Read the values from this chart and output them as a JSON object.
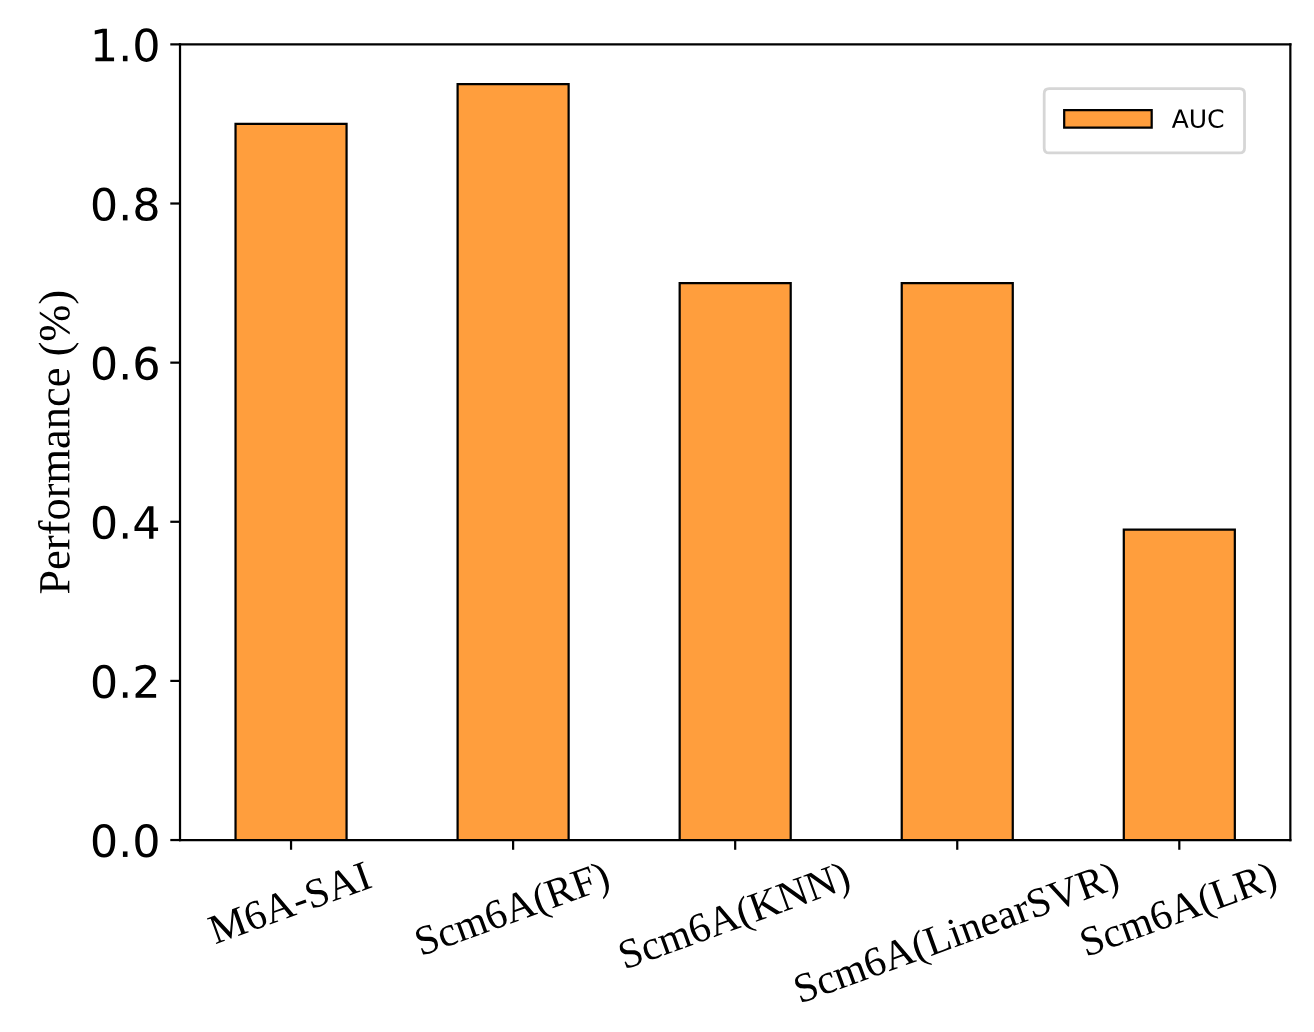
{
  "chart_data": {
    "type": "bar",
    "categories": [
      "M6A-SAI",
      "Scm6A(RF)",
      "Scm6A(KNN)",
      "Scm6A(LinearSVR)",
      "Scm6A(LR)"
    ],
    "series": [
      {
        "name": "AUC",
        "color": "#ff9e3d",
        "values": [
          0.9,
          0.95,
          0.7,
          0.7,
          0.39
        ]
      }
    ],
    "ylabel": "Performance (%)",
    "ylim": [
      0,
      1.0
    ],
    "yticks": [
      {
        "value": 0,
        "label": "0.0"
      },
      0.2,
      0.4,
      0.6,
      0.8,
      {
        "value": 1.0,
        "label": "1.0"
      }
    ],
    "legend": "top right",
    "grid": false
  }
}
